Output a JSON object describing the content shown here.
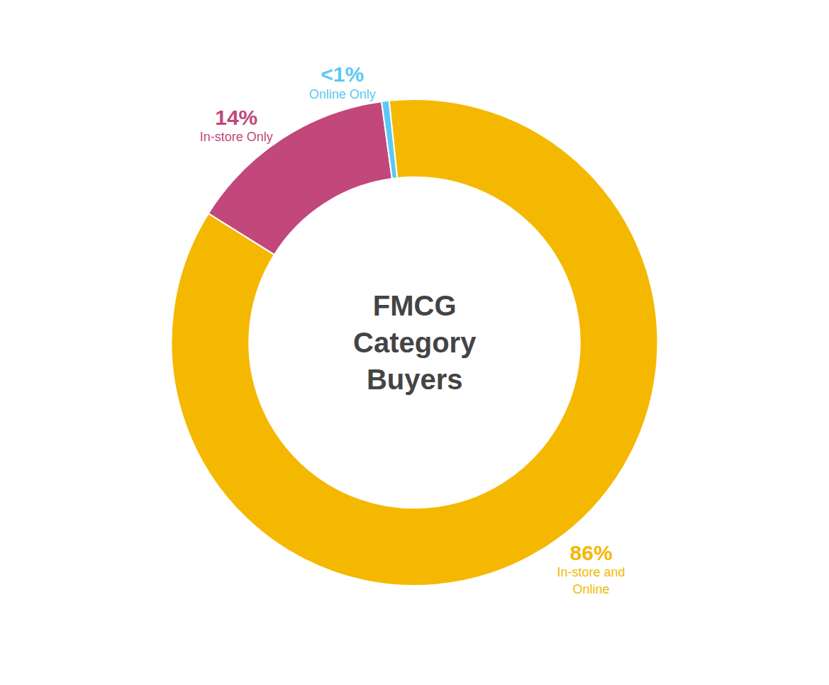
{
  "chart_data": {
    "type": "pie",
    "categories": [
      "In-store and\nOnline",
      "In-store Only",
      "Online Only"
    ],
    "values": [
      86,
      14,
      0.5
    ],
    "value_labels": [
      "86%",
      "14%",
      "<1%"
    ],
    "colors": [
      "#F5B800",
      "#C2477A",
      "#5BC8F5"
    ],
    "annotations": [
      "FMCG\nCategory\nBuyers"
    ]
  }
}
